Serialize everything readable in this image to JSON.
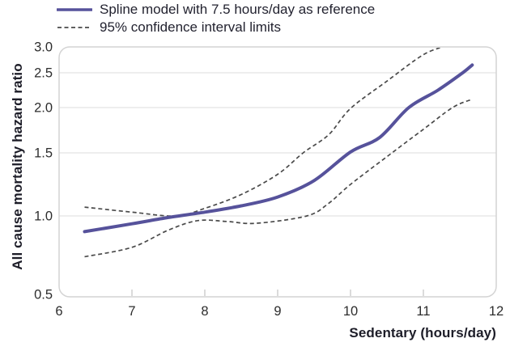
{
  "chart_data": {
    "type": "line",
    "title": "",
    "xlabel": "Sedentary (hours/day)",
    "ylabel": "All cause mortality hazard ratio",
    "x_ticks": [
      6,
      7,
      8,
      9,
      10,
      11,
      12
    ],
    "y_ticks": [
      {
        "value": 0.5,
        "label": "0.5"
      },
      {
        "value": 1.0,
        "label": "1.0"
      },
      {
        "value": 1.5,
        "label": "1.5"
      },
      {
        "value": 2.0,
        "label": "2.0"
      },
      {
        "value": 2.5,
        "label": "2.5"
      },
      {
        "value": 3.0,
        "label": "3.0"
      }
    ],
    "xlim": [
      6,
      12
    ],
    "ylim": [
      0.5,
      3.0
    ],
    "y_scale": "log-like",
    "grid": "horizontal gridlines at 1.0, 1.5, 2.0, 2.5; frame edges at 0.5 and 3.0",
    "legend_position": "top-left",
    "legend": [
      {
        "label": "Spline model with 7.5 hours/day as reference",
        "style": "solid",
        "color": "#56529b"
      },
      {
        "label": "95% confidence interval limits",
        "style": "dashed",
        "color": "#4a4a4a"
      }
    ],
    "series": [
      {
        "name": "Spline model with 7.5 hours/day as reference",
        "style": "solid",
        "color": "#56529b",
        "points": [
          [
            6.35,
            0.9
          ],
          [
            7.0,
            0.95
          ],
          [
            7.5,
            0.99
          ],
          [
            8.0,
            1.03
          ],
          [
            8.5,
            1.08
          ],
          [
            9.0,
            1.15
          ],
          [
            9.5,
            1.28
          ],
          [
            10.0,
            1.51
          ],
          [
            10.4,
            1.67
          ],
          [
            10.8,
            2.0
          ],
          [
            11.2,
            2.25
          ],
          [
            11.54,
            2.5
          ],
          [
            11.67,
            2.65
          ]
        ]
      },
      {
        "name": "95% CI upper limit",
        "style": "dashed",
        "color": "#4a4a4a",
        "points": [
          [
            6.35,
            1.07
          ],
          [
            7.0,
            1.03
          ],
          [
            7.6,
            1.0
          ],
          [
            8.0,
            1.06
          ],
          [
            8.5,
            1.17
          ],
          [
            9.0,
            1.33
          ],
          [
            9.35,
            1.5
          ],
          [
            9.7,
            1.7
          ],
          [
            10.0,
            1.99
          ],
          [
            10.5,
            2.38
          ],
          [
            11.0,
            2.85
          ],
          [
            11.32,
            3.02
          ]
        ]
      },
      {
        "name": "95% CI lower limit",
        "style": "dashed",
        "color": "#4a4a4a",
        "points": [
          [
            6.35,
            0.74
          ],
          [
            7.0,
            0.8
          ],
          [
            7.5,
            0.91
          ],
          [
            7.9,
            0.97
          ],
          [
            8.3,
            0.965
          ],
          [
            8.7,
            0.953
          ],
          [
            9.4,
            1.0
          ],
          [
            9.7,
            1.1
          ],
          [
            10.0,
            1.25
          ],
          [
            10.5,
            1.47
          ],
          [
            11.0,
            1.76
          ],
          [
            11.4,
            2.0
          ],
          [
            11.67,
            2.12
          ]
        ]
      }
    ],
    "colors": {
      "spline": "#56529b",
      "ci": "#4a4a4a",
      "gridline": "#e3e3e3",
      "frame": "#d4d4d4",
      "tick_text": "#2d2d2d",
      "axis_title_text": "#1d1d28"
    }
  }
}
